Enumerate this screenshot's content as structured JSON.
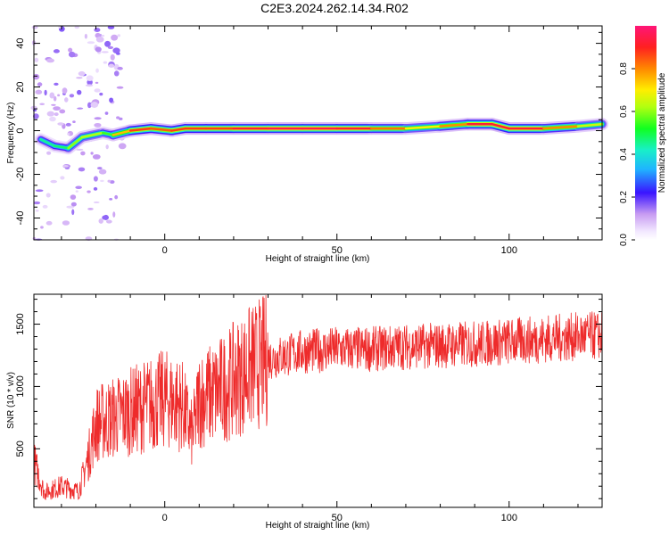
{
  "figure": {
    "title": "C2E3.2024.262.14.34.R02"
  },
  "colors": {
    "snr_line": "#ee2b2b",
    "axis": "#000000",
    "background": "#ffffff"
  },
  "chart_data": [
    {
      "type": "heatmap",
      "title": "C2E3.2024.262.14.34.R02",
      "xlabel": "Height of straight line (km)",
      "ylabel": "Frequency (Hz)",
      "xlim": [
        -38,
        127
      ],
      "ylim": [
        -50,
        48
      ],
      "xticks": [
        0,
        50,
        100
      ],
      "xtick_labels": [
        "0",
        "50",
        "100"
      ],
      "yticks": [
        -40,
        -20,
        0,
        20,
        40
      ],
      "ytick_labels": [
        "-40",
        "-20",
        "0",
        "20",
        "40"
      ],
      "colorbar": {
        "label": "Normalized spectral amplitude",
        "range": [
          0,
          1
        ],
        "ticks": [
          0.0,
          0.2,
          0.4,
          0.6,
          0.8
        ],
        "tick_labels": [
          "0.0",
          "0.2",
          "0.4",
          "0.6",
          "0.8"
        ]
      },
      "dominant_frequency_track": [
        {
          "x": -36,
          "f": -4,
          "amp": 0.4
        },
        {
          "x": -32,
          "f": -7,
          "amp": 0.5
        },
        {
          "x": -28,
          "f": -8,
          "amp": 0.45
        },
        {
          "x": -24,
          "f": -3,
          "amp": 0.75
        },
        {
          "x": -18,
          "f": -1,
          "amp": 0.5
        },
        {
          "x": -15,
          "f": -2,
          "amp": 0.6
        },
        {
          "x": -10,
          "f": 0,
          "amp": 0.9
        },
        {
          "x": -4,
          "f": 1,
          "amp": 0.85
        },
        {
          "x": 2,
          "f": 0,
          "amp": 0.85
        },
        {
          "x": 6,
          "f": 1,
          "amp": 0.9
        },
        {
          "x": 12,
          "f": 1,
          "amp": 0.85
        },
        {
          "x": 20,
          "f": 1,
          "amp": 0.9
        },
        {
          "x": 30,
          "f": 1,
          "amp": 0.95
        },
        {
          "x": 40,
          "f": 1,
          "amp": 0.95
        },
        {
          "x": 50,
          "f": 1,
          "amp": 0.95
        },
        {
          "x": 60,
          "f": 1,
          "amp": 0.9
        },
        {
          "x": 70,
          "f": 1,
          "amp": 0.75
        },
        {
          "x": 80,
          "f": 2,
          "amp": 0.65
        },
        {
          "x": 88,
          "f": 3,
          "amp": 0.95
        },
        {
          "x": 95,
          "f": 3,
          "amp": 0.9
        },
        {
          "x": 100,
          "f": 1,
          "amp": 0.95
        },
        {
          "x": 110,
          "f": 1,
          "amp": 0.9
        },
        {
          "x": 120,
          "f": 2,
          "amp": 0.7
        },
        {
          "x": 127,
          "f": 3,
          "amp": 0.6
        }
      ]
    },
    {
      "type": "line",
      "xlabel": "Height of straight line (km)",
      "ylabel": "SNR (10 * v/v)",
      "xlim": [
        -38,
        127
      ],
      "ylim": [
        30,
        1740
      ],
      "xticks": [
        0,
        50,
        100
      ],
      "xtick_labels": [
        "0",
        "50",
        "100"
      ],
      "yticks": [
        500,
        1000,
        1500
      ],
      "ytick_labels": [
        "500",
        "1000",
        "1500"
      ],
      "series": [
        {
          "name": "SNR",
          "x": [
            -38,
            -35,
            -30,
            -25,
            -22,
            -20,
            -15,
            -10,
            -5,
            0,
            5,
            8,
            10,
            15,
            20,
            25,
            30,
            40,
            50,
            60,
            70,
            80,
            90,
            100,
            110,
            120,
            127
          ],
          "values": [
            400,
            150,
            200,
            160,
            450,
            700,
            750,
            800,
            850,
            900,
            850,
            600,
            900,
            950,
            1050,
            1150,
            1220,
            1280,
            1300,
            1300,
            1320,
            1330,
            1340,
            1360,
            1380,
            1400,
            1410
          ]
        }
      ]
    }
  ]
}
